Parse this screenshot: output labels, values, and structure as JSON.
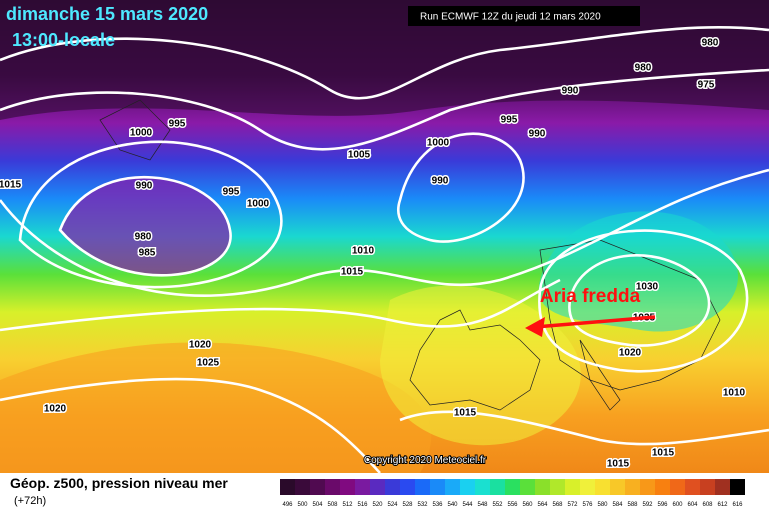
{
  "header": {
    "date": "dimanche 15 mars 2020",
    "time": "13:00-locale",
    "run": "Run ECMWF 12Z du jeudi 12 mars 2020"
  },
  "annotation": "Aria fredda",
  "copyright": "Copyright 2020 Meteociel.fr",
  "footer": {
    "title": "Géop. z500, pression niveau mer",
    "subtitle": "(+72h)"
  },
  "isobar_labels": [
    "980",
    "980",
    "975",
    "990",
    "995",
    "990",
    "1000",
    "990",
    "1005",
    "995",
    "1000",
    "990",
    "995",
    "1000",
    "980",
    "985",
    "1015",
    "1010",
    "1015",
    "1030",
    "1035",
    "1020",
    "1025",
    "1020",
    "1020",
    "1015",
    "1010",
    "1015",
    "1015"
  ],
  "legend": {
    "ticks": [
      "496",
      "500",
      "504",
      "508",
      "512",
      "516",
      "520",
      "524",
      "528",
      "532",
      "536",
      "540",
      "544",
      "548",
      "552",
      "556",
      "560",
      "564",
      "568",
      "572",
      "576",
      "580",
      "584",
      "588",
      "592",
      "596",
      "600",
      "604",
      "608",
      "612",
      "616"
    ],
    "colors": [
      "#2a0a2a",
      "#3a0a3a",
      "#500a50",
      "#6a0a6a",
      "#800a80",
      "#7a1aa0",
      "#5a2ac0",
      "#3a3ad8",
      "#2a4af0",
      "#1a6af8",
      "#1a8af8",
      "#1aaaf8",
      "#1ad0f0",
      "#1ae0d0",
      "#1ae0a0",
      "#2ae060",
      "#5ae03a",
      "#8ae02a",
      "#b0e82a",
      "#d8f02a",
      "#f0f03a",
      "#f8e030",
      "#f8c828",
      "#f8b020",
      "#f89818",
      "#f88010",
      "#f06818",
      "#e05020",
      "#c84020",
      "#a03020",
      "#000000"
    ]
  }
}
